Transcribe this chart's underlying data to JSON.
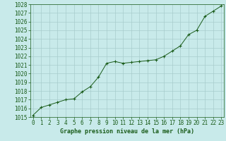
{
  "x": [
    0,
    1,
    2,
    3,
    4,
    5,
    6,
    7,
    8,
    9,
    10,
    11,
    12,
    13,
    14,
    15,
    16,
    17,
    18,
    19,
    20,
    21,
    22,
    23
  ],
  "y": [
    1015.2,
    1016.1,
    1016.4,
    1016.7,
    1017.0,
    1017.1,
    1017.9,
    1018.5,
    1019.6,
    1021.2,
    1021.4,
    1021.2,
    1021.3,
    1021.4,
    1021.5,
    1021.6,
    1022.0,
    1022.6,
    1023.2,
    1024.5,
    1025.0,
    1026.6,
    1027.2,
    1027.8
  ],
  "xlim": [
    -0.3,
    23.3
  ],
  "ylim": [
    1015,
    1028
  ],
  "yticks": [
    1015,
    1016,
    1017,
    1018,
    1019,
    1020,
    1021,
    1022,
    1023,
    1024,
    1025,
    1026,
    1027,
    1028
  ],
  "xticks": [
    0,
    1,
    2,
    3,
    4,
    5,
    6,
    7,
    8,
    9,
    10,
    11,
    12,
    13,
    14,
    15,
    16,
    17,
    18,
    19,
    20,
    21,
    22,
    23
  ],
  "line_color": "#1a5c1a",
  "marker": "+",
  "bg_color": "#c8eaea",
  "grid_color": "#a8cccc",
  "xlabel": "Graphe pression niveau de la mer (hPa)",
  "xlabel_fontsize": 6.0,
  "tick_fontsize": 5.5,
  "tick_color": "#1a5c1a",
  "label_color": "#1a5c1a"
}
